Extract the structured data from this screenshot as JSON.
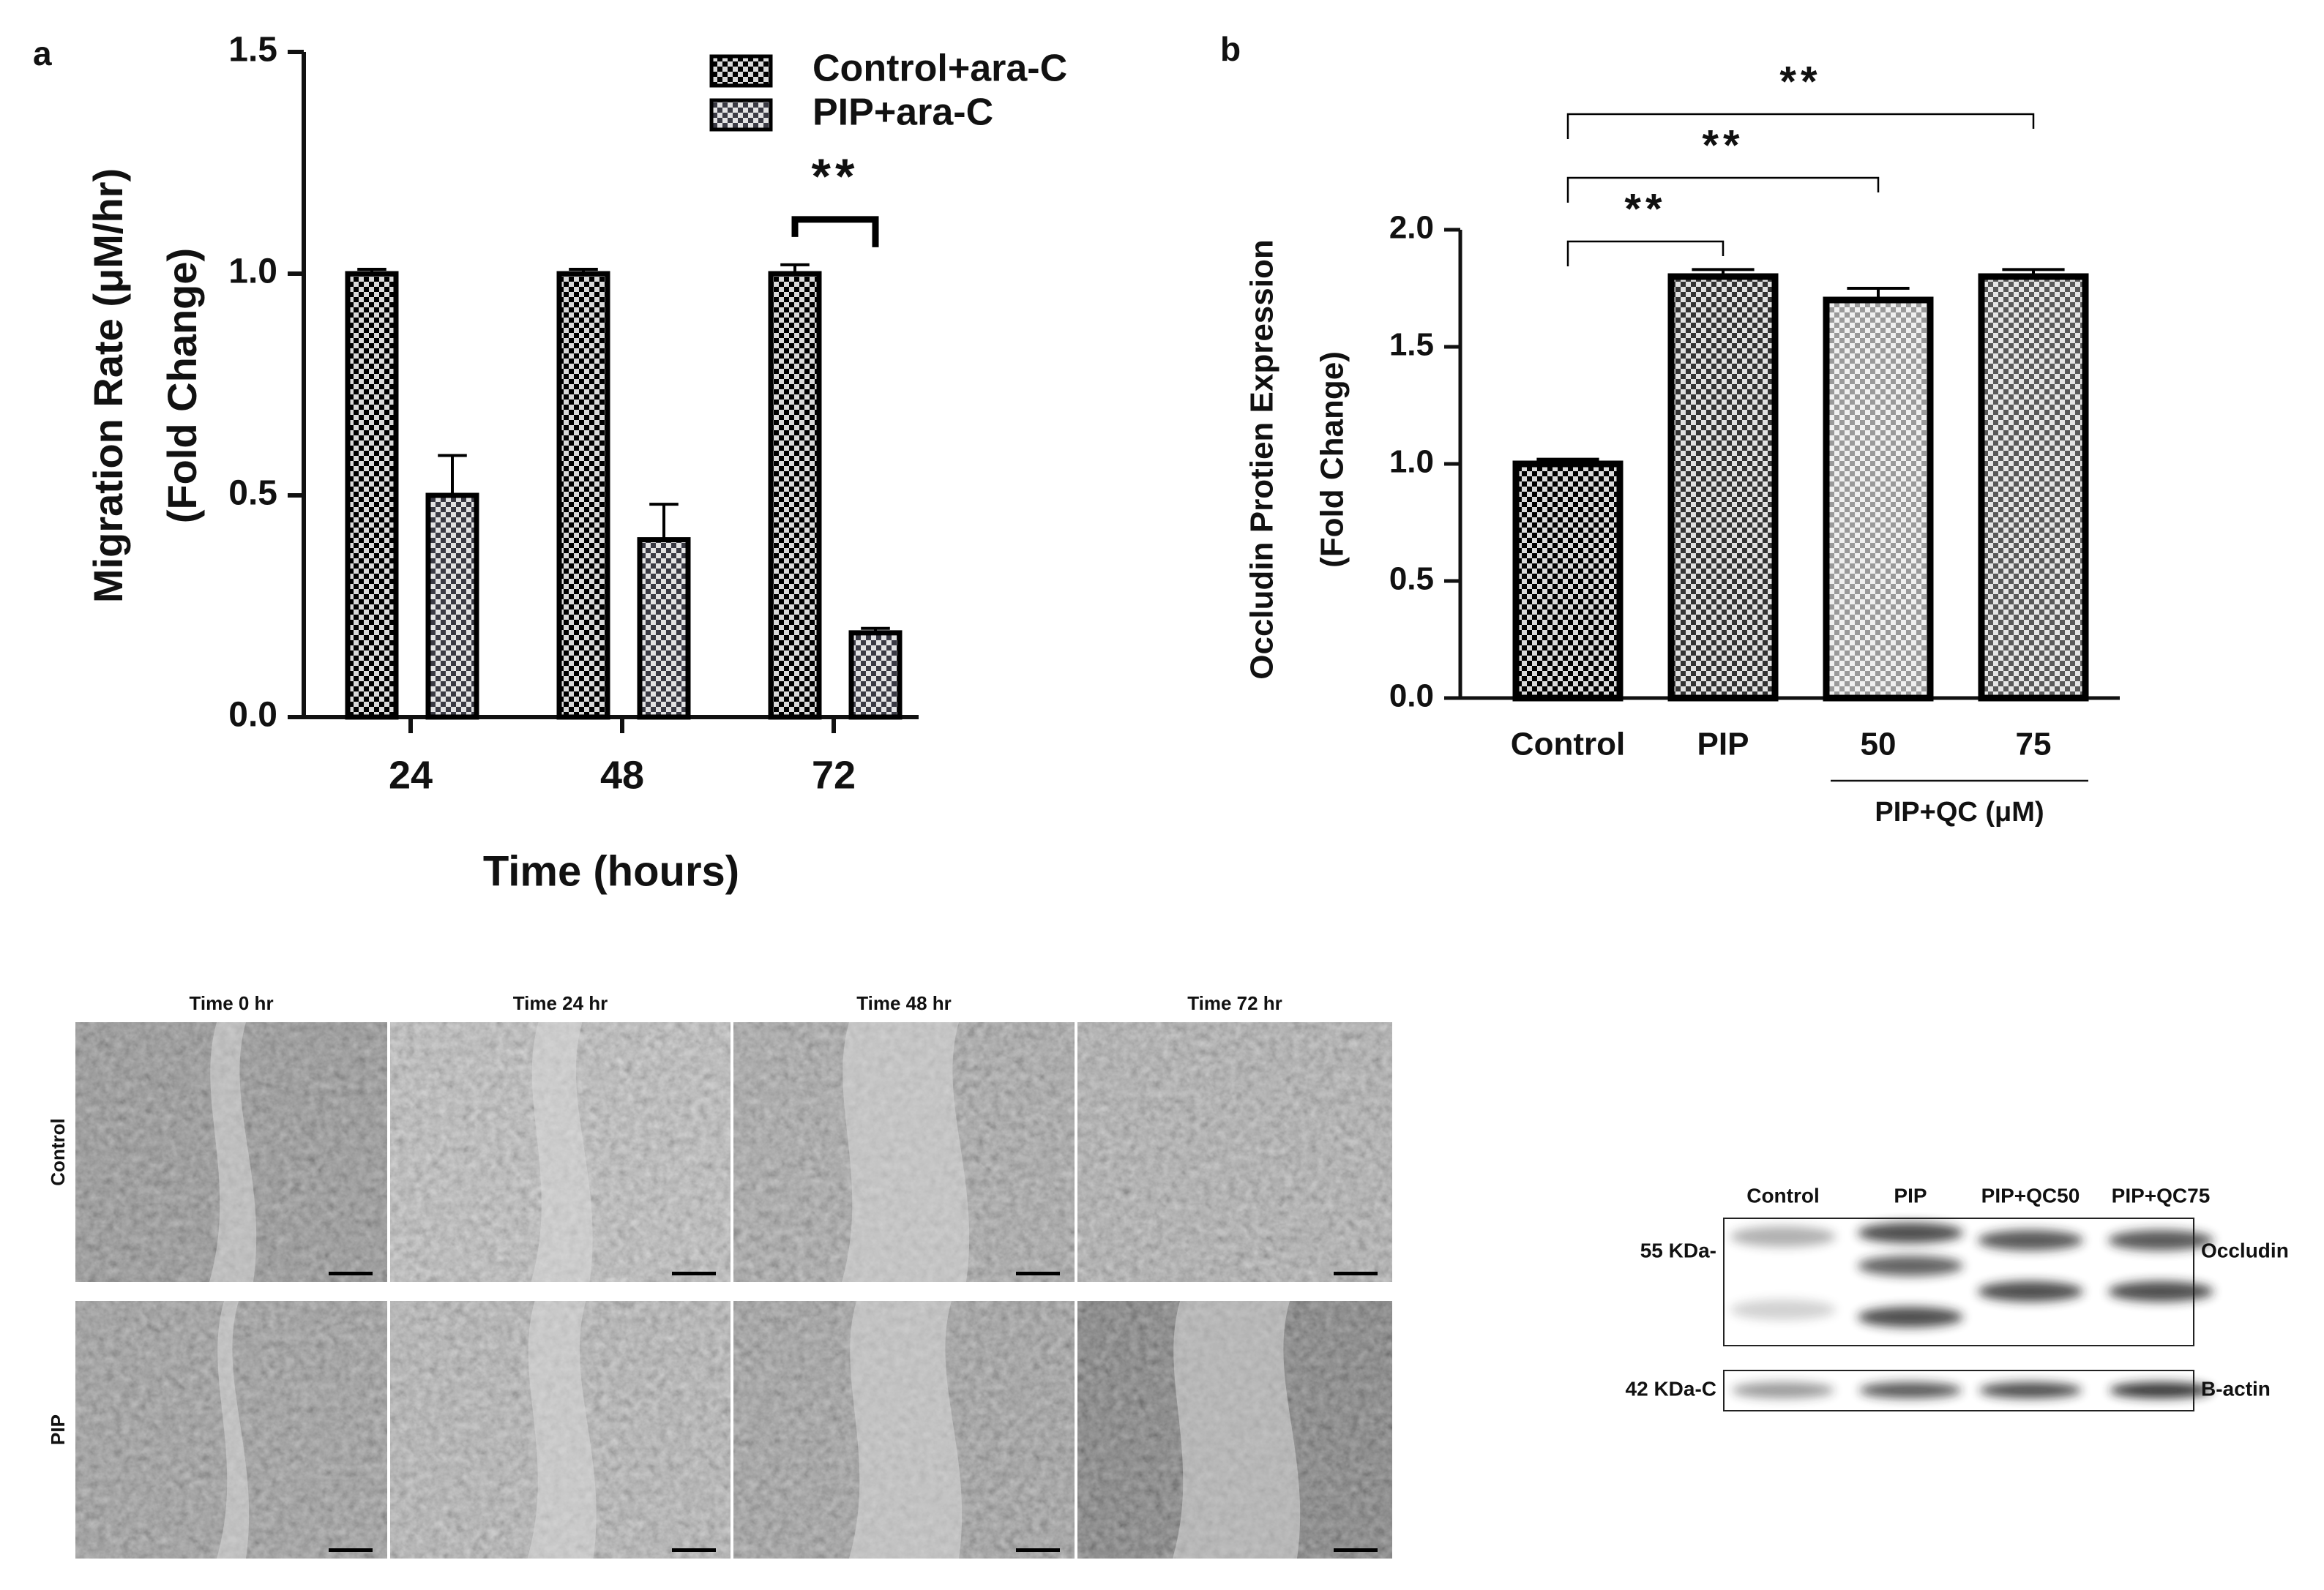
{
  "chart_data": [
    {
      "type": "bar",
      "panel_label": "a",
      "categories": [
        "24",
        "48",
        "72"
      ],
      "series": [
        {
          "name": "Control+ara-C",
          "color": "#000000",
          "values": [
            1.0,
            1.0,
            1.0
          ],
          "errors": [
            0.01,
            0.01,
            0.02
          ]
        },
        {
          "name": "PIP+ara-C",
          "color": "#3a3a44",
          "values": [
            0.5,
            0.4,
            0.19
          ],
          "errors": [
            0.09,
            0.08,
            0.01
          ]
        }
      ],
      "ylim": [
        0,
        1.5
      ],
      "yticks": [
        {
          "value": 0,
          "label": "0.0"
        },
        {
          "value": 0.5,
          "label": "0.5"
        },
        {
          "value": 1,
          "label": "1.0"
        },
        {
          "value": 1.5,
          "label": "1.5"
        }
      ],
      "ylabel": [
        "Migration Rate (μM/hr)",
        "(Fold Change)"
      ],
      "xlabel": "Time (hours)",
      "annotations": [
        {
          "label": "**",
          "category": "72"
        }
      ]
    },
    {
      "type": "bar",
      "panel_label": "b",
      "categories": [
        "Control",
        "PIP",
        "50",
        "75"
      ],
      "values": [
        1.0,
        1.8,
        1.7,
        1.8
      ],
      "errors": [
        0.02,
        0.03,
        0.05,
        0.03
      ],
      "colors": [
        "#000000",
        "#333333",
        "#9a9a9a",
        "#5a5a5a"
      ],
      "ylim": [
        0,
        2
      ],
      "yticks": [
        {
          "value": 0,
          "label": "0.0"
        },
        {
          "value": 0.5,
          "label": "0.5"
        },
        {
          "value": 1,
          "label": "1.0"
        },
        {
          "value": 1.5,
          "label": "1.5"
        },
        {
          "value": 2,
          "label": "2.0"
        }
      ],
      "ylabel": [
        "Occludin Protien Expression",
        "(Fold Change)"
      ],
      "groups": [
        {
          "label": "PIP+QC (μM)",
          "categories": [
            "50",
            "75"
          ]
        }
      ],
      "annotations": [
        {
          "label": "**",
          "between": [
            "Control",
            "PIP"
          ]
        },
        {
          "label": "**",
          "between": [
            "Control",
            "50"
          ]
        },
        {
          "label": "**",
          "between": [
            "Control",
            "75"
          ]
        }
      ]
    }
  ],
  "micrographs": {
    "columns": [
      "Time 0 hr",
      "Time 24 hr",
      "Time 48 hr",
      "Time 72 hr"
    ],
    "rows": [
      "Control",
      "PIP"
    ]
  },
  "western_blot": {
    "lanes": [
      "Control",
      "PIP",
      "PIP+QC50",
      "PIP+QC75"
    ],
    "markers": [
      "55 KDa-",
      "42 KDa-C"
    ],
    "proteins": [
      "Occludin",
      "B-actin"
    ]
  }
}
